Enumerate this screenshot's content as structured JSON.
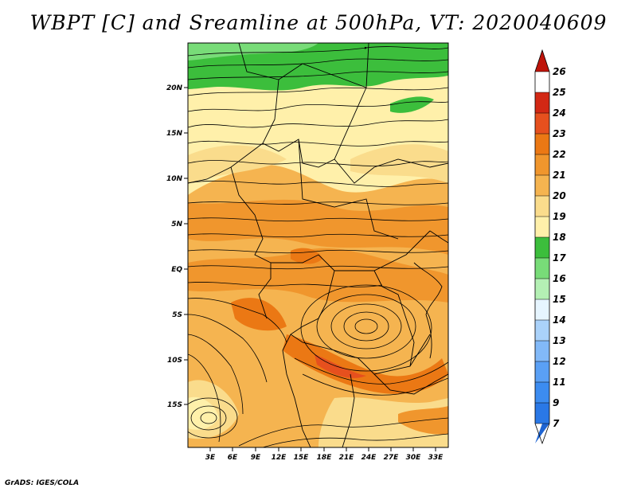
{
  "title": "WBPT [C] and Sreamline at 500hPa, VT: 2020040609",
  "credit": "GrADS: IGES/COLA",
  "map": {
    "lat_ticks": [
      "20N",
      "15N",
      "10N",
      "5N",
      "EQ",
      "5S",
      "10S",
      "15S"
    ],
    "lon_ticks": [
      "3E",
      "6E",
      "9E",
      "12E",
      "15E",
      "18E",
      "21E",
      "24E",
      "27E",
      "30E",
      "33E"
    ]
  },
  "colorbar": {
    "labels": [
      "7",
      "9",
      "11",
      "12",
      "13",
      "14",
      "15",
      "16",
      "17",
      "18",
      "19",
      "20",
      "21",
      "22",
      "23",
      "24",
      "25",
      "26"
    ],
    "colors": [
      "#1e64d2",
      "#2a78e6",
      "#3c8cf0",
      "#5aa0f5",
      "#82b9f8",
      "#aad2fa",
      "#e6f5ff",
      "#b4f0b4",
      "#78dc78",
      "#3cbe3c",
      "#fff0aa",
      "#fadc8c",
      "#f5b450",
      "#f0962d",
      "#eb7814",
      "#e6501e",
      "#d22814",
      "#be140a"
    ]
  }
}
